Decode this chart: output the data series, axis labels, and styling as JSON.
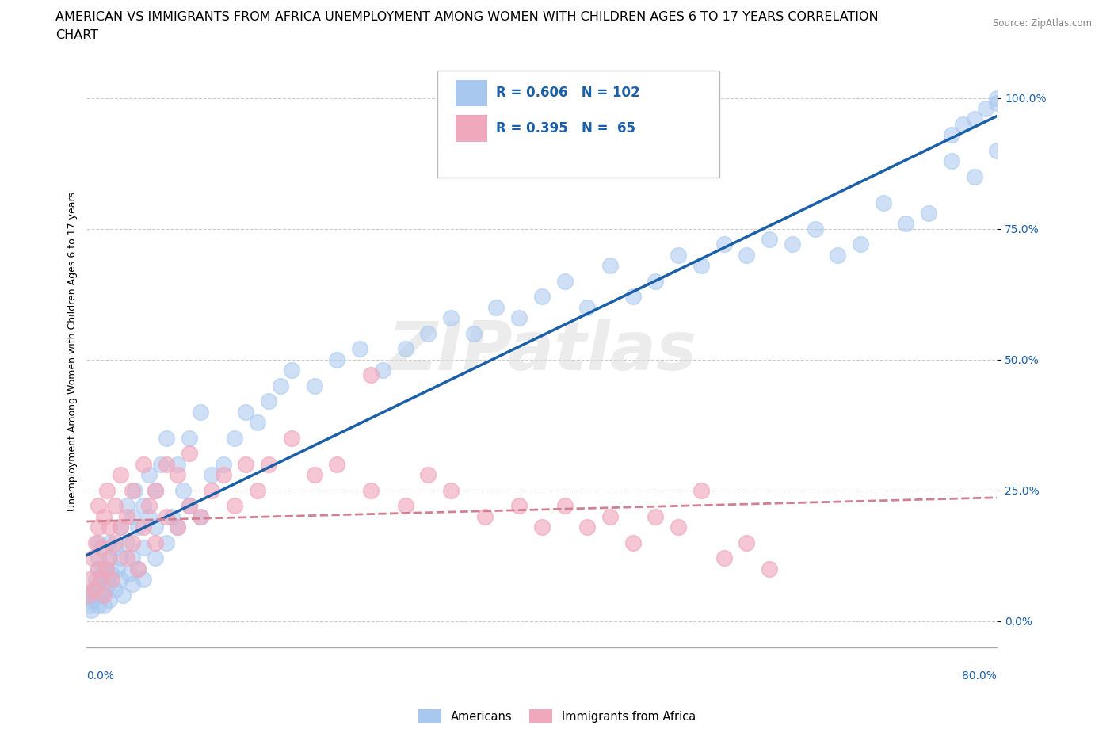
{
  "title_line1": "AMERICAN VS IMMIGRANTS FROM AFRICA UNEMPLOYMENT AMONG WOMEN WITH CHILDREN AGES 6 TO 17 YEARS CORRELATION",
  "title_line2": "CHART",
  "source": "Source: ZipAtlas.com",
  "xlabel_bottom_left": "0.0%",
  "xlabel_bottom_right": "80.0%",
  "ylabel": "Unemployment Among Women with Children Ages 6 to 17 years",
  "ytick_vals": [
    0.0,
    25.0,
    50.0,
    75.0,
    100.0
  ],
  "xlim": [
    0.0,
    80.0
  ],
  "ylim": [
    -5.0,
    108.0
  ],
  "watermark": "ZIPatlas",
  "legend_americans": "Americans",
  "legend_immigrants": "Immigrants from Africa",
  "r_americans": 0.606,
  "n_americans": 102,
  "r_immigrants": 0.395,
  "n_immigrants": 65,
  "american_color": "#a8c8f0",
  "immigrant_color": "#f0a8bc",
  "american_line_color": "#1a5fa8",
  "immigrant_line_color": "#d08090",
  "background_color": "#ffffff",
  "title_fontsize": 11.5,
  "axis_label_fontsize": 9,
  "tick_fontsize": 10,
  "americans_x": [
    0.2,
    0.3,
    0.4,
    0.5,
    0.6,
    0.8,
    1.0,
    1.0,
    1.0,
    1.0,
    1.0,
    1.2,
    1.3,
    1.5,
    1.5,
    1.7,
    1.8,
    2.0,
    2.0,
    2.0,
    2.0,
    2.2,
    2.5,
    2.5,
    2.7,
    3.0,
    3.0,
    3.0,
    3.2,
    3.5,
    3.5,
    3.7,
    4.0,
    4.0,
    4.0,
    4.2,
    4.5,
    4.5,
    5.0,
    5.0,
    5.0,
    5.5,
    5.5,
    6.0,
    6.0,
    6.0,
    6.5,
    7.0,
    7.0,
    7.5,
    8.0,
    8.0,
    8.5,
    9.0,
    9.0,
    10.0,
    10.0,
    11.0,
    12.0,
    13.0,
    14.0,
    15.0,
    16.0,
    17.0,
    18.0,
    20.0,
    22.0,
    24.0,
    26.0,
    28.0,
    30.0,
    32.0,
    34.0,
    36.0,
    38.0,
    40.0,
    42.0,
    44.0,
    46.0,
    48.0,
    50.0,
    52.0,
    54.0,
    56.0,
    58.0,
    60.0,
    62.0,
    64.0,
    66.0,
    68.0,
    70.0,
    72.0,
    74.0,
    76.0,
    78.0,
    80.0,
    76.0,
    77.0,
    78.0,
    79.0,
    80.0,
    80.0
  ],
  "americans_y": [
    3,
    5,
    2,
    4,
    6,
    8,
    10,
    3,
    7,
    12,
    15,
    5,
    8,
    3,
    10,
    6,
    9,
    4,
    12,
    7,
    15,
    9,
    6,
    14,
    10,
    8,
    18,
    12,
    5,
    15,
    22,
    9,
    7,
    20,
    12,
    25,
    10,
    18,
    14,
    22,
    8,
    20,
    28,
    12,
    25,
    18,
    30,
    15,
    35,
    20,
    18,
    30,
    25,
    22,
    35,
    20,
    40,
    28,
    30,
    35,
    40,
    38,
    42,
    45,
    48,
    45,
    50,
    52,
    48,
    52,
    55,
    58,
    55,
    60,
    58,
    62,
    65,
    60,
    68,
    62,
    65,
    70,
    68,
    72,
    70,
    73,
    72,
    75,
    70,
    72,
    80,
    76,
    78,
    88,
    85,
    90,
    93,
    95,
    96,
    98,
    100,
    99
  ],
  "immigrants_x": [
    0.2,
    0.3,
    0.5,
    0.7,
    0.8,
    1.0,
    1.0,
    1.0,
    1.2,
    1.3,
    1.5,
    1.5,
    1.7,
    1.8,
    2.0,
    2.0,
    2.2,
    2.5,
    2.5,
    3.0,
    3.0,
    3.5,
    3.5,
    4.0,
    4.0,
    4.5,
    5.0,
    5.0,
    5.5,
    6.0,
    6.0,
    7.0,
    7.0,
    8.0,
    8.0,
    9.0,
    9.0,
    10.0,
    11.0,
    12.0,
    13.0,
    14.0,
    15.0,
    16.0,
    18.0,
    20.0,
    22.0,
    25.0,
    28.0,
    30.0,
    32.0,
    35.0,
    38.0,
    40.0,
    42.0,
    44.0,
    46.0,
    48.0,
    50.0,
    52.0,
    54.0,
    56.0,
    58.0,
    60.0,
    25.0
  ],
  "immigrants_y": [
    5,
    8,
    12,
    6,
    15,
    10,
    18,
    22,
    8,
    14,
    5,
    20,
    10,
    25,
    12,
    18,
    8,
    15,
    22,
    18,
    28,
    12,
    20,
    15,
    25,
    10,
    18,
    30,
    22,
    15,
    25,
    20,
    30,
    18,
    28,
    22,
    32,
    20,
    25,
    28,
    22,
    30,
    25,
    30,
    35,
    28,
    30,
    25,
    22,
    28,
    25,
    20,
    22,
    18,
    22,
    18,
    20,
    15,
    20,
    18,
    25,
    12,
    15,
    10,
    47
  ]
}
